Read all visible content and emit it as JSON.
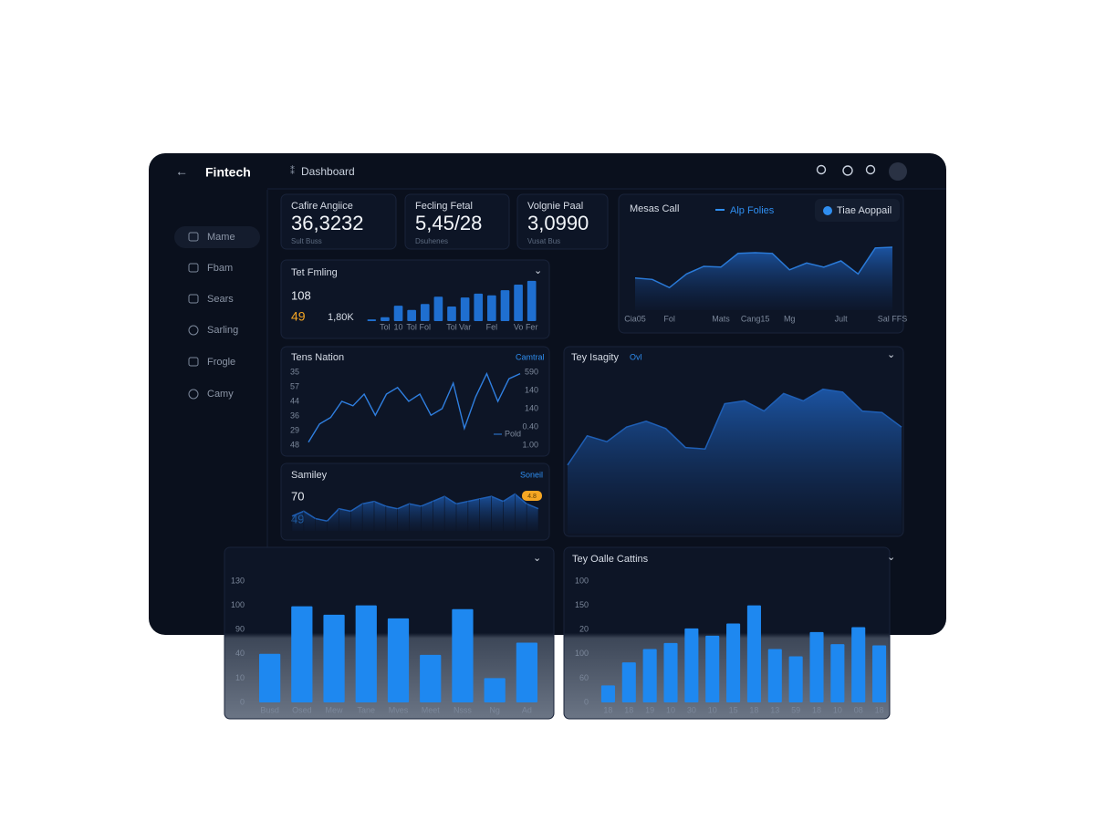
{
  "app": {
    "brand": "Fintech",
    "page": "Dashboard",
    "nav": [
      "Mame",
      "Fbam",
      "Sears",
      "Sarling",
      "Frogle",
      "Camy"
    ],
    "kpis": [
      {
        "label": "Cafire Angiice",
        "value": "36,3232",
        "sub": "Sult Buss"
      },
      {
        "label": "Fecling Fetal",
        "value": "5,45/28",
        "sub": "Dsuhenes"
      },
      {
        "label": "Volgnie Paal",
        "value": "3,0990",
        "sub": "Vusat Bus"
      }
    ]
  },
  "chart_data": [
    {
      "type": "area",
      "title": "Mesas Call",
      "series_name": "Alp Folies",
      "button": "Tiae Aoppail",
      "color": "#2a7ad8",
      "categories": [
        "Cia05",
        null,
        "Fol",
        null,
        null,
        "Mats",
        null,
        "Cang15",
        null,
        "Mg",
        null,
        null,
        "Jult",
        null,
        null,
        "Sal FFS"
      ],
      "values": [
        47,
        45,
        33,
        53,
        64,
        63,
        83,
        84,
        83,
        59,
        69,
        63,
        72,
        53,
        91,
        92
      ],
      "ylim": [
        0,
        100
      ]
    },
    {
      "type": "bar",
      "title": "Tet Fmling",
      "stats": [
        "108",
        "49",
        "1,80K"
      ],
      "color": "#1f6fd0",
      "categories": [
        null,
        "Tol",
        "10",
        "Tol",
        "Fol",
        null,
        "Tol",
        "Var",
        null,
        "Fel",
        null,
        "Vo",
        "Fer"
      ],
      "values": [
        4,
        9,
        36,
        26,
        40,
        57,
        34,
        55,
        64,
        60,
        72,
        85,
        94
      ],
      "ylim": [
        0,
        100
      ]
    },
    {
      "type": "line",
      "title": "Tens Nation",
      "link": "Camtral",
      "legend": "Pold",
      "color": "#2f7fe0",
      "y_axis_text": [
        "35",
        "57",
        "44",
        "36",
        "29",
        "48"
      ],
      "y2_axis_text": [
        "590",
        "140",
        "140",
        "0.40",
        "1.00"
      ],
      "values": [
        4,
        29,
        38,
        60,
        54,
        70,
        41,
        70,
        79,
        60,
        70,
        41,
        50,
        85,
        23,
        66,
        98,
        60,
        91,
        98
      ],
      "ylim": [
        0,
        100
      ]
    },
    {
      "type": "area",
      "title": "Samiley",
      "link": "Soneil",
      "stats": [
        "70",
        "49"
      ],
      "badge": "4.8",
      "color": "#1f5fb5",
      "values": [
        30,
        40,
        25,
        20,
        45,
        40,
        55,
        60,
        50,
        45,
        55,
        50,
        60,
        70,
        55,
        60,
        65,
        70,
        60,
        75,
        55,
        45
      ],
      "ylim": [
        0,
        100
      ]
    },
    {
      "type": "area",
      "title": "Tey Isagity",
      "link": "Ovl",
      "color": "#1f5fb5",
      "values": [
        47,
        67,
        63,
        73,
        77,
        72,
        59,
        58,
        89,
        91,
        84,
        96,
        91,
        99,
        97,
        84,
        83,
        73
      ],
      "ylim": [
        0,
        100
      ]
    },
    {
      "type": "bar",
      "color": "#1e88f0",
      "y_axis_text": [
        "130",
        "100",
        "90",
        "40",
        "10",
        "0"
      ],
      "categories": [
        "Busd",
        "Osed",
        "Mew",
        "Tane",
        "Mves",
        "Meet",
        "Nsss",
        "Ng",
        "Ad"
      ],
      "values": [
        52,
        103,
        94,
        104,
        90,
        51,
        100,
        26,
        64
      ],
      "ylim": [
        0,
        130
      ]
    },
    {
      "type": "bar",
      "title": "Tey Oalle Cattins",
      "color": "#1e88f0",
      "y_axis_text": [
        "100",
        "150",
        "20",
        "100",
        "60",
        "0"
      ],
      "categories": [
        "18",
        "18",
        "19",
        "10",
        "30",
        "10",
        "15",
        "18",
        "13",
        "59",
        "18",
        "10",
        "08",
        "18"
      ],
      "values": [
        14,
        33,
        44,
        49,
        61,
        55,
        65,
        80,
        44,
        38,
        58,
        48,
        62,
        47
      ],
      "ylim": [
        0,
        100
      ]
    }
  ]
}
